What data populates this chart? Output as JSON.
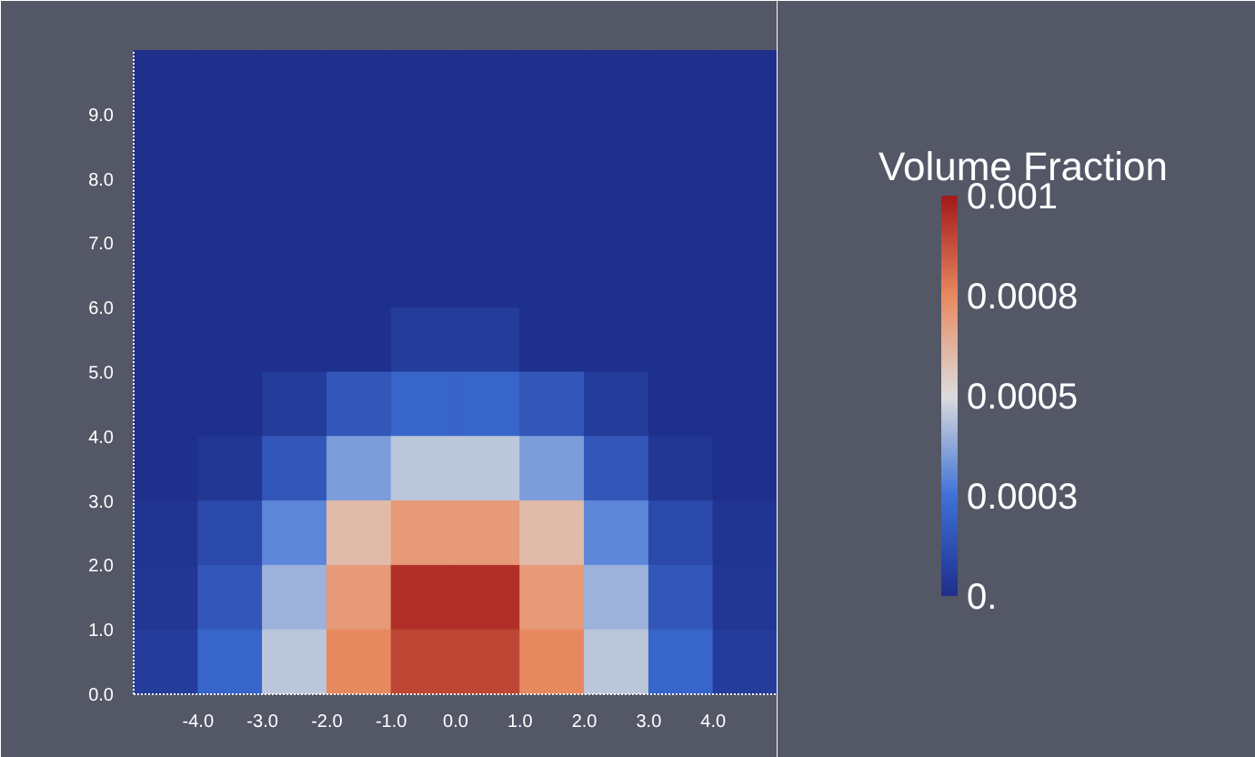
{
  "chart_data": {
    "type": "heatmap",
    "clabel": "Volume Fraction",
    "x": [
      -4.5,
      -3.5,
      -2.5,
      -1.5,
      -0.5,
      0.5,
      1.5,
      2.5,
      3.5,
      4.5
    ],
    "y": [
      9.5,
      8.5,
      7.5,
      6.5,
      5.5,
      4.5,
      3.5,
      2.5,
      1.5,
      0.5
    ],
    "xlim": [
      -5,
      5
    ],
    "ylim": [
      0,
      10
    ],
    "xticks": [
      {
        "value": -4,
        "label": "-4.0"
      },
      {
        "value": -3,
        "label": "-3.0"
      },
      {
        "value": -2,
        "label": "-2.0"
      },
      {
        "value": -1,
        "label": "-1.0"
      },
      {
        "value": 0,
        "label": "0.0"
      },
      {
        "value": 1,
        "label": "1.0"
      },
      {
        "value": 2,
        "label": "2.0"
      },
      {
        "value": 3,
        "label": "3.0"
      },
      {
        "value": 4,
        "label": "4.0"
      }
    ],
    "yticks": [
      {
        "value": 0,
        "label": "0.0"
      },
      {
        "value": 1,
        "label": "1.0"
      },
      {
        "value": 2,
        "label": "2.0"
      },
      {
        "value": 3,
        "label": "3.0"
      },
      {
        "value": 4,
        "label": "4.0"
      },
      {
        "value": 5,
        "label": "5.0"
      },
      {
        "value": 6,
        "label": "6.0"
      },
      {
        "value": 7,
        "label": "7.0"
      },
      {
        "value": 8,
        "label": "8.0"
      },
      {
        "value": 9,
        "label": "9.0"
      }
    ],
    "clim": [
      0,
      0.001
    ],
    "cticks": [
      {
        "value": 0,
        "label": "0."
      },
      {
        "value": 0.00025,
        "label": "0.0003"
      },
      {
        "value": 0.0005,
        "label": "0.0005"
      },
      {
        "value": 0.00075,
        "label": "0.0008"
      },
      {
        "value": 0.001,
        "label": "0.001"
      }
    ],
    "cells": [
      [
        0,
        0,
        0,
        0,
        0,
        0,
        0,
        0,
        0,
        0
      ],
      [
        0,
        0,
        0,
        0,
        0,
        0,
        0,
        0,
        0,
        0
      ],
      [
        0,
        0,
        0,
        0,
        0,
        0,
        0,
        0,
        0,
        0
      ],
      [
        0,
        0,
        0,
        0,
        0,
        0,
        0,
        0,
        0,
        0
      ],
      [
        0,
        0,
        0,
        0,
        5e-05,
        5e-05,
        0,
        0,
        0,
        0
      ],
      [
        0,
        0,
        5e-05,
        0.00015,
        0.0002,
        0.0002,
        0.00015,
        5e-05,
        0,
        0
      ],
      [
        0,
        3e-05,
        0.00015,
        0.00035,
        0.00045,
        0.00045,
        0.00035,
        0.00015,
        3e-05,
        0
      ],
      [
        2e-05,
        0.0001,
        0.0003,
        0.0006,
        0.0007,
        0.0007,
        0.0006,
        0.0003,
        0.0001,
        2e-05
      ],
      [
        3e-05,
        0.00015,
        0.0004,
        0.0007,
        0.00095,
        0.00095,
        0.0007,
        0.0004,
        0.00015,
        3e-05
      ],
      [
        5e-05,
        0.0002,
        0.00045,
        0.00075,
        0.0009,
        0.0009,
        0.00075,
        0.00045,
        0.0002,
        5e-05
      ]
    ]
  }
}
